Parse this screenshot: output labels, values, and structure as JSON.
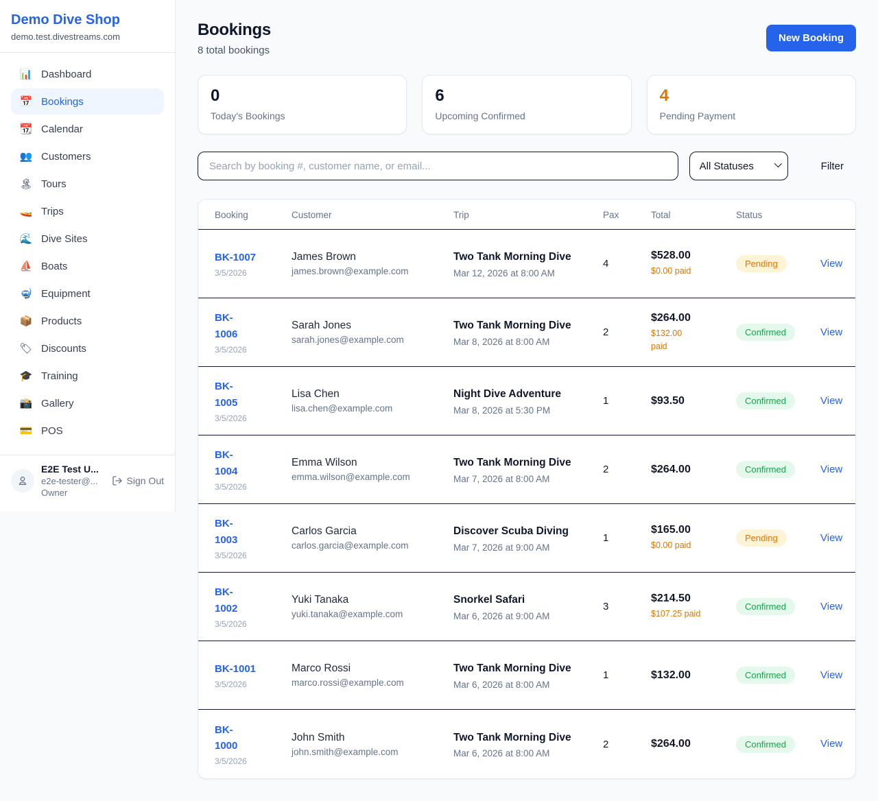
{
  "sidebar": {
    "brand": {
      "name": "Demo Dive Shop",
      "domain": "demo.test.divestreams.com"
    },
    "nav": [
      {
        "label": "Dashboard",
        "icon": "📊",
        "active": false
      },
      {
        "label": "Bookings",
        "icon": "📅",
        "active": true
      },
      {
        "label": "Calendar",
        "icon": "📆",
        "active": false
      },
      {
        "label": "Customers",
        "icon": "👥",
        "active": false
      },
      {
        "label": "Tours",
        "icon": "🏝",
        "active": false
      },
      {
        "label": "Trips",
        "icon": "🚤",
        "active": false
      },
      {
        "label": "Dive Sites",
        "icon": "🌊",
        "active": false
      },
      {
        "label": "Boats",
        "icon": "⛵",
        "active": false
      },
      {
        "label": "Equipment",
        "icon": "🤿",
        "active": false
      },
      {
        "label": "Products",
        "icon": "📦",
        "active": false
      },
      {
        "label": "Discounts",
        "icon": "🏷",
        "active": false
      },
      {
        "label": "Training",
        "icon": "🎓",
        "active": false
      },
      {
        "label": "Gallery",
        "icon": "📸",
        "active": false
      },
      {
        "label": "POS",
        "icon": "💳",
        "active": false
      }
    ],
    "user": {
      "name": "E2E Test U...",
      "email": "e2e-tester@...",
      "role": "Owner",
      "sign_out_label": "Sign Out"
    }
  },
  "header": {
    "title": "Bookings",
    "subtitle": "8 total bookings",
    "new_booking_label": "New Booking"
  },
  "stats": [
    {
      "value": "0",
      "label": "Today's Bookings",
      "highlight": false
    },
    {
      "value": "6",
      "label": "Upcoming Confirmed",
      "highlight": false
    },
    {
      "value": "4",
      "label": "Pending Payment",
      "highlight": true
    }
  ],
  "filters": {
    "search_placeholder": "Search by booking #, customer name, or email...",
    "status_select_value": "All Statuses",
    "filter_button_label": "Filter"
  },
  "table": {
    "columns": [
      "Booking",
      "Customer",
      "Trip",
      "Pax",
      "Total",
      "Status"
    ],
    "rows": [
      {
        "id": "BK-1007",
        "date": "3/5/2026",
        "customer": "James Brown",
        "email": "james.brown@example.com",
        "trip": "Two Tank Morning Dive",
        "trip_date": "Mar 12, 2026 at 8:00 AM",
        "pax": "4",
        "total": "$528.00",
        "paid": "$0.00 paid",
        "status": "Pending",
        "action": "View"
      },
      {
        "id": "BK-\n1006",
        "date": "3/5/2026",
        "customer": "Sarah Jones",
        "email": "sarah.jones@example.com",
        "trip": "Two Tank Morning Dive",
        "trip_date": "Mar 8, 2026 at 8:00 AM",
        "pax": "2",
        "total": "$264.00",
        "paid": "$132.00\npaid",
        "status": "Confirmed",
        "action": "View"
      },
      {
        "id": "BK-\n1005",
        "date": "3/5/2026",
        "customer": "Lisa Chen",
        "email": "lisa.chen@example.com",
        "trip": "Night Dive Adventure",
        "trip_date": "Mar 8, 2026 at 5:30 PM",
        "pax": "1",
        "total": "$93.50",
        "paid": "",
        "status": "Confirmed",
        "action": "View"
      },
      {
        "id": "BK-\n1004",
        "date": "3/5/2026",
        "customer": "Emma Wilson",
        "email": "emma.wilson@example.com",
        "trip": "Two Tank Morning Dive",
        "trip_date": "Mar 7, 2026 at 8:00 AM",
        "pax": "2",
        "total": "$264.00",
        "paid": "",
        "status": "Confirmed",
        "action": "View"
      },
      {
        "id": "BK-\n1003",
        "date": "3/5/2026",
        "customer": "Carlos Garcia",
        "email": "carlos.garcia@example.com",
        "trip": "Discover Scuba Diving",
        "trip_date": "Mar 7, 2026 at 9:00 AM",
        "pax": "1",
        "total": "$165.00",
        "paid": "$0.00 paid",
        "status": "Pending",
        "action": "View"
      },
      {
        "id": "BK-\n1002",
        "date": "3/5/2026",
        "customer": "Yuki Tanaka",
        "email": "yuki.tanaka@example.com",
        "trip": "Snorkel Safari",
        "trip_date": "Mar 6, 2026 at 9:00 AM",
        "pax": "3",
        "total": "$214.50",
        "paid": "$107.25 paid",
        "status": "Confirmed",
        "action": "View"
      },
      {
        "id": "BK-1001",
        "date": "3/5/2026",
        "customer": "Marco Rossi",
        "email": "marco.rossi@example.com",
        "trip": "Two Tank Morning Dive",
        "trip_date": "Mar 6, 2026 at 8:00 AM",
        "pax": "1",
        "total": "$132.00",
        "paid": "",
        "status": "Confirmed",
        "action": "View"
      },
      {
        "id": "BK-\n1000",
        "date": "3/5/2026",
        "customer": "John Smith",
        "email": "john.smith@example.com",
        "trip": "Two Tank Morning Dive",
        "trip_date": "Mar 6, 2026 at 8:00 AM",
        "pax": "2",
        "total": "$264.00",
        "paid": "",
        "status": "Confirmed",
        "action": "View"
      }
    ]
  },
  "colors": {
    "accent_blue": "#2563eb",
    "pending_orange": "#d97706",
    "confirmed_green": "#16a34a",
    "divider_dark": "#111827",
    "border_light": "#e2e8f0",
    "page_bg": "#f8fafc"
  }
}
